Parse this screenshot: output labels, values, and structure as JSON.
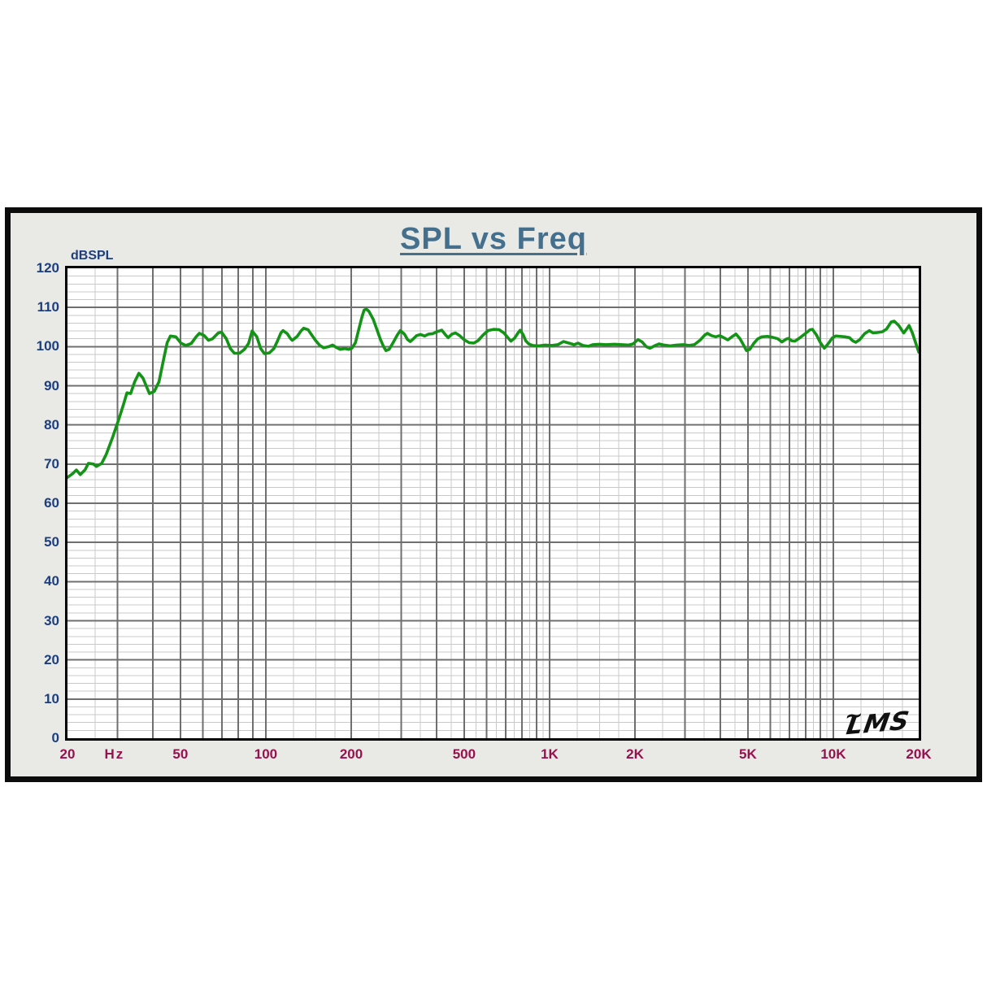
{
  "title": {
    "text": "SPL vs Freq",
    "color": "#44708e"
  },
  "watermark": {
    "text": "LMS",
    "mark": "~"
  },
  "chart_data": {
    "type": "line",
    "title": "SPL vs Freq",
    "ylabel": "dBSPL",
    "x_unit": "Hz",
    "x_scale": "log",
    "xlim": [
      20,
      20000
    ],
    "ylim": [
      0,
      120
    ],
    "y_major_step": 10,
    "y_minor_step": 2,
    "grid": true,
    "legend_position": "none",
    "colors": {
      "y_label": "#1d3f7d",
      "x_label": "#95124e",
      "grid_major": "#6f6f6f",
      "grid_minor": "#c9c9c9",
      "curve": "#149417",
      "plot_bg": "#ffffff",
      "panel_bg": "#e9e9e5"
    },
    "y_tick_labels": [
      0,
      10,
      20,
      30,
      40,
      50,
      60,
      70,
      80,
      90,
      100,
      110,
      120
    ],
    "x_tick_labels": [
      {
        "value": 20,
        "label": "20"
      },
      {
        "value": 50,
        "label": "50"
      },
      {
        "value": 100,
        "label": "100"
      },
      {
        "value": 200,
        "label": "200"
      },
      {
        "value": 500,
        "label": "500"
      },
      {
        "value": 1000,
        "label": "1K"
      },
      {
        "value": 2000,
        "label": "2K"
      },
      {
        "value": 5000,
        "label": "5K"
      },
      {
        "value": 10000,
        "label": "10K"
      },
      {
        "value": 20000,
        "label": "20K"
      }
    ],
    "x_major_gridlines": [
      30,
      40,
      50,
      60,
      70,
      80,
      90,
      100,
      200,
      300,
      400,
      500,
      600,
      700,
      800,
      900,
      1000,
      2000,
      3000,
      4000,
      5000,
      6000,
      7000,
      8000,
      9000,
      10000
    ],
    "x_minor_gridlines": [
      25,
      125,
      150,
      175,
      250,
      350,
      450,
      550,
      650,
      750,
      850,
      950,
      1250,
      1500,
      1750,
      2500,
      3500,
      4500,
      5500,
      6500,
      7500,
      8500,
      9500,
      12500,
      15000,
      17500
    ],
    "series": [
      {
        "name": "SPL",
        "color": "#149417",
        "points": [
          [
            20,
            66.6
          ],
          [
            20.8,
            67.5
          ],
          [
            21.5,
            68.5
          ],
          [
            22.2,
            67.3
          ],
          [
            23.1,
            68.6
          ],
          [
            23.7,
            70.2
          ],
          [
            24.7,
            70.0
          ],
          [
            25.3,
            69.4
          ],
          [
            26.4,
            70.2
          ],
          [
            27.4,
            72.5
          ],
          [
            28.9,
            77.0
          ],
          [
            30.5,
            82.0
          ],
          [
            31.6,
            85.5
          ],
          [
            32.4,
            88.2
          ],
          [
            33.4,
            88.0
          ],
          [
            34.5,
            91.0
          ],
          [
            35.7,
            93.2
          ],
          [
            36.9,
            92.0
          ],
          [
            38.9,
            88.0
          ],
          [
            40.5,
            88.6
          ],
          [
            42,
            91.0
          ],
          [
            43.7,
            97.0
          ],
          [
            44.9,
            101.0
          ],
          [
            46.1,
            102.7
          ],
          [
            48.2,
            102.5
          ],
          [
            50.2,
            100.9
          ],
          [
            52.2,
            100.3
          ],
          [
            54.6,
            100.8
          ],
          [
            56.8,
            102.5
          ],
          [
            58.3,
            103.4
          ],
          [
            60.7,
            102.8
          ],
          [
            62.8,
            101.6
          ],
          [
            64.9,
            102.0
          ],
          [
            68,
            103.5
          ],
          [
            69.8,
            103.7
          ],
          [
            72.6,
            102.0
          ],
          [
            75,
            99.5
          ],
          [
            77.5,
            98.3
          ],
          [
            80.8,
            98.3
          ],
          [
            84.1,
            99.3
          ],
          [
            86.9,
            100.8
          ],
          [
            89.5,
            104.0
          ],
          [
            93,
            102.5
          ],
          [
            95.9,
            99.5
          ],
          [
            98.9,
            98.2
          ],
          [
            103,
            98.4
          ],
          [
            106.8,
            99.5
          ],
          [
            110,
            101.5
          ],
          [
            113,
            103.5
          ],
          [
            115,
            104.1
          ],
          [
            119,
            103.3
          ],
          [
            122,
            102.1
          ],
          [
            124,
            101.6
          ],
          [
            129,
            102.6
          ],
          [
            133,
            104.0
          ],
          [
            136,
            104.7
          ],
          [
            141,
            104.3
          ],
          [
            145,
            103.0
          ],
          [
            150,
            101.5
          ],
          [
            155,
            100.3
          ],
          [
            160,
            99.7
          ],
          [
            167,
            100.0
          ],
          [
            172,
            100.4
          ],
          [
            177,
            99.8
          ],
          [
            183,
            99.3
          ],
          [
            190,
            99.5
          ],
          [
            196,
            99.3
          ],
          [
            201,
            99.6
          ],
          [
            207,
            101.0
          ],
          [
            212,
            104.0
          ],
          [
            218,
            107.5
          ],
          [
            222,
            109.3
          ],
          [
            226,
            109.6
          ],
          [
            231,
            109.0
          ],
          [
            239,
            107.0
          ],
          [
            246,
            104.5
          ],
          [
            253,
            102.0
          ],
          [
            260,
            100.0
          ],
          [
            265,
            99.0
          ],
          [
            272,
            99.3
          ],
          [
            281,
            101.0
          ],
          [
            291,
            103.0
          ],
          [
            298,
            104.1
          ],
          [
            308,
            103.2
          ],
          [
            316,
            101.8
          ],
          [
            323,
            101.3
          ],
          [
            331,
            102.0
          ],
          [
            340,
            102.8
          ],
          [
            351,
            103.1
          ],
          [
            363,
            102.7
          ],
          [
            375,
            103.2
          ],
          [
            388,
            103.3
          ],
          [
            401,
            103.8
          ],
          [
            417,
            104.2
          ],
          [
            430,
            103.0
          ],
          [
            439,
            102.3
          ],
          [
            453,
            103.2
          ],
          [
            466,
            103.5
          ],
          [
            482,
            102.8
          ],
          [
            501,
            101.7
          ],
          [
            521,
            101.0
          ],
          [
            541,
            100.9
          ],
          [
            559,
            101.5
          ],
          [
            584,
            103.0
          ],
          [
            607,
            104.1
          ],
          [
            635,
            104.4
          ],
          [
            665,
            104.3
          ],
          [
            690,
            103.5
          ],
          [
            713,
            102.3
          ],
          [
            731,
            101.4
          ],
          [
            754,
            102.2
          ],
          [
            774,
            103.5
          ],
          [
            788,
            104.2
          ],
          [
            808,
            103.0
          ],
          [
            824,
            101.5
          ],
          [
            845,
            100.7
          ],
          [
            872,
            100.3
          ],
          [
            917,
            100.2
          ],
          [
            965,
            100.4
          ],
          [
            1020,
            100.3
          ],
          [
            1070,
            100.5
          ],
          [
            1120,
            101.3
          ],
          [
            1170,
            100.9
          ],
          [
            1220,
            100.5
          ],
          [
            1260,
            100.9
          ],
          [
            1310,
            100.3
          ],
          [
            1370,
            100.1
          ],
          [
            1420,
            100.5
          ],
          [
            1500,
            100.6
          ],
          [
            1580,
            100.5
          ],
          [
            1690,
            100.6
          ],
          [
            1800,
            100.5
          ],
          [
            1900,
            100.4
          ],
          [
            1970,
            100.7
          ],
          [
            2050,
            101.8
          ],
          [
            2120,
            101.2
          ],
          [
            2190,
            100.0
          ],
          [
            2260,
            99.6
          ],
          [
            2360,
            100.3
          ],
          [
            2430,
            100.7
          ],
          [
            2530,
            100.4
          ],
          [
            2660,
            100.2
          ],
          [
            2810,
            100.4
          ],
          [
            2960,
            100.5
          ],
          [
            3100,
            100.3
          ],
          [
            3240,
            100.5
          ],
          [
            3400,
            101.7
          ],
          [
            3530,
            103.0
          ],
          [
            3600,
            103.4
          ],
          [
            3720,
            102.8
          ],
          [
            3850,
            102.5
          ],
          [
            3980,
            102.8
          ],
          [
            4110,
            102.3
          ],
          [
            4250,
            101.7
          ],
          [
            4390,
            102.5
          ],
          [
            4540,
            103.2
          ],
          [
            4690,
            102.0
          ],
          [
            4820,
            100.5
          ],
          [
            4940,
            99.0
          ],
          [
            5080,
            99.3
          ],
          [
            5240,
            100.8
          ],
          [
            5420,
            102.0
          ],
          [
            5600,
            102.5
          ],
          [
            5860,
            102.6
          ],
          [
            6100,
            102.4
          ],
          [
            6380,
            102.0
          ],
          [
            6590,
            101.2
          ],
          [
            6810,
            101.9
          ],
          [
            6950,
            102.1
          ],
          [
            7130,
            101.5
          ],
          [
            7320,
            101.4
          ],
          [
            7610,
            102.2
          ],
          [
            7960,
            103.3
          ],
          [
            8280,
            104.3
          ],
          [
            8440,
            104.4
          ],
          [
            8720,
            103.0
          ],
          [
            9010,
            101.0
          ],
          [
            9300,
            99.6
          ],
          [
            9610,
            100.8
          ],
          [
            9920,
            102.2
          ],
          [
            10200,
            102.7
          ],
          [
            10600,
            102.6
          ],
          [
            11000,
            102.5
          ],
          [
            11400,
            102.3
          ],
          [
            11700,
            101.5
          ],
          [
            12000,
            101.1
          ],
          [
            12400,
            101.8
          ],
          [
            12900,
            103.3
          ],
          [
            13400,
            104.1
          ],
          [
            13800,
            103.5
          ],
          [
            14300,
            103.6
          ],
          [
            14900,
            103.8
          ],
          [
            15400,
            104.5
          ],
          [
            16000,
            106.3
          ],
          [
            16400,
            106.5
          ],
          [
            17000,
            105.4
          ],
          [
            17700,
            103.5
          ],
          [
            18100,
            104.4
          ],
          [
            18500,
            105.4
          ],
          [
            19000,
            103.5
          ],
          [
            19500,
            101.0
          ],
          [
            20000,
            98.6
          ]
        ]
      }
    ]
  }
}
